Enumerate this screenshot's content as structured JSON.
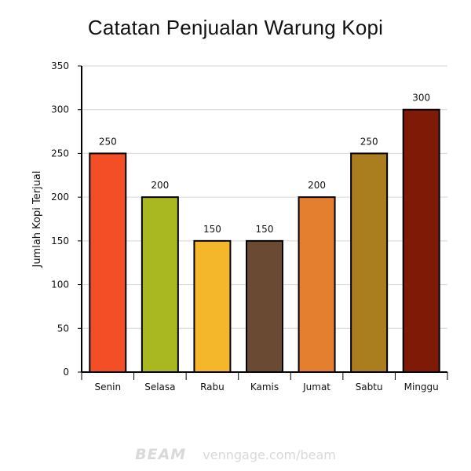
{
  "chart_data": {
    "type": "bar",
    "title": "Catatan Penjualan Warung Kopi",
    "xlabel": "",
    "ylabel": "Jumlah Kopi Terjual",
    "categories": [
      "Senin",
      "Selasa",
      "Rabu",
      "Kamis",
      "Jumat",
      "Sabtu",
      "Minggu"
    ],
    "values": [
      250,
      200,
      150,
      150,
      200,
      250,
      300
    ],
    "colors": [
      "#f44e26",
      "#a9b820",
      "#f4b72b",
      "#6a4a33",
      "#e57f30",
      "#aa7e1e",
      "#7e1a06"
    ],
    "ylim": [
      0,
      350
    ],
    "yticks": [
      0,
      50,
      100,
      150,
      200,
      250,
      300,
      350
    ],
    "grid": true,
    "data_labels": true,
    "legend": "none"
  },
  "watermark": {
    "brand": "BEAM",
    "site": "venngage.com/beam"
  }
}
